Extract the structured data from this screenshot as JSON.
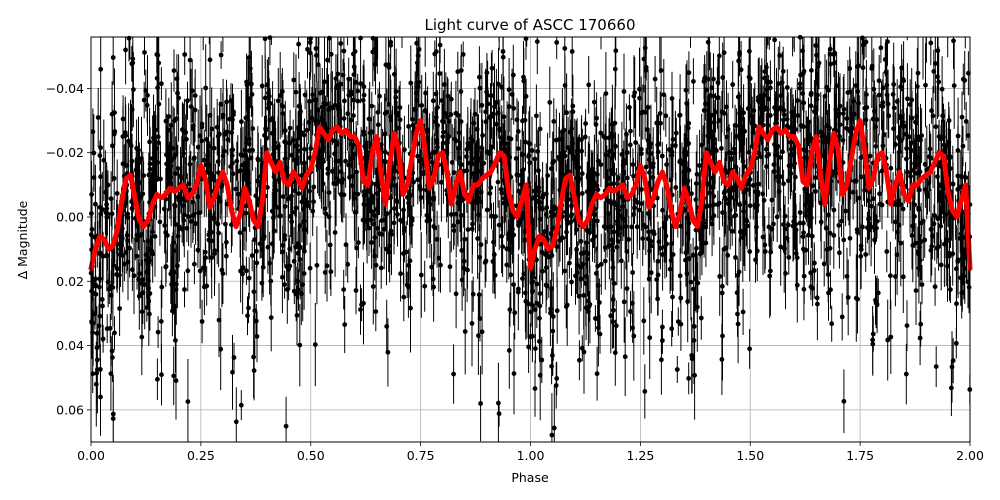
{
  "chart_data": {
    "type": "scatter",
    "title": "Light curve of ASCC 170660",
    "xlabel": "Phase",
    "ylabel": "Δ Magnitude",
    "xlim": [
      0.0,
      2.0
    ],
    "ylim": [
      0.07,
      -0.056
    ],
    "y_inverted": true,
    "grid": true,
    "x_ticks": [
      0.0,
      0.25,
      0.5,
      0.75,
      1.0,
      1.25,
      1.5,
      1.75,
      2.0
    ],
    "x_tick_labels": [
      "0.00",
      "0.25",
      "0.50",
      "0.75",
      "1.00",
      "1.25",
      "1.50",
      "1.75",
      "2.00"
    ],
    "y_ticks": [
      -0.04,
      -0.02,
      0.0,
      0.02,
      0.04,
      0.06
    ],
    "y_tick_labels": [
      "−0.04",
      "−0.02",
      "0.00",
      "0.02",
      "0.04",
      "0.06"
    ],
    "series": [
      {
        "name": "observations",
        "style": "black points with error bars",
        "color": "#000000",
        "description": "dense photometric measurements scattered roughly between +0.07 and −0.056 mag across the full phase range, repeated for phase 0–1 and 1–2"
      },
      {
        "name": "smoothed model",
        "style": "thick red line",
        "color": "#ff0000",
        "x": [
          0.0,
          0.01,
          0.02,
          0.03,
          0.04,
          0.05,
          0.06,
          0.07,
          0.08,
          0.09,
          0.1,
          0.11,
          0.12,
          0.13,
          0.14,
          0.15,
          0.16,
          0.17,
          0.18,
          0.19,
          0.2,
          0.21,
          0.22,
          0.23,
          0.24,
          0.25,
          0.26,
          0.27,
          0.28,
          0.29,
          0.3,
          0.31,
          0.32,
          0.33,
          0.34,
          0.35,
          0.36,
          0.37,
          0.38,
          0.39,
          0.4,
          0.41,
          0.42,
          0.43,
          0.44,
          0.45,
          0.46,
          0.47,
          0.48,
          0.49,
          0.5,
          0.51,
          0.52,
          0.53,
          0.54,
          0.55,
          0.56,
          0.57,
          0.58,
          0.59,
          0.6,
          0.61,
          0.62,
          0.63,
          0.64,
          0.65,
          0.66,
          0.67,
          0.68,
          0.69,
          0.7,
          0.71,
          0.72,
          0.73,
          0.74,
          0.75,
          0.76,
          0.77,
          0.78,
          0.79,
          0.8,
          0.81,
          0.82,
          0.83,
          0.84,
          0.85,
          0.86,
          0.87,
          0.88,
          0.89,
          0.9,
          0.91,
          0.92,
          0.93,
          0.94,
          0.95,
          0.96,
          0.97,
          0.98,
          0.99,
          1.0
        ],
        "y": [
          0.016,
          0.01,
          0.006,
          0.007,
          0.01,
          0.009,
          0.004,
          -0.005,
          -0.012,
          -0.013,
          -0.006,
          0.001,
          0.003,
          0.001,
          -0.004,
          -0.007,
          -0.006,
          -0.007,
          -0.009,
          -0.008,
          -0.009,
          -0.01,
          -0.006,
          -0.007,
          -0.01,
          -0.016,
          -0.012,
          -0.003,
          -0.006,
          -0.011,
          -0.014,
          -0.01,
          -0.002,
          0.003,
          -0.001,
          -0.009,
          -0.005,
          0.001,
          0.003,
          -0.005,
          -0.02,
          -0.017,
          -0.014,
          -0.017,
          -0.011,
          -0.01,
          -0.014,
          -0.012,
          -0.009,
          -0.013,
          -0.015,
          -0.02,
          -0.028,
          -0.026,
          -0.024,
          -0.027,
          -0.028,
          -0.026,
          -0.027,
          -0.025,
          -0.025,
          -0.022,
          -0.011,
          -0.01,
          -0.02,
          -0.025,
          -0.013,
          -0.004,
          -0.017,
          -0.026,
          -0.021,
          -0.007,
          -0.01,
          -0.018,
          -0.026,
          -0.03,
          -0.021,
          -0.009,
          -0.012,
          -0.019,
          -0.02,
          -0.014,
          -0.004,
          -0.01,
          -0.014,
          -0.007,
          -0.005,
          -0.01,
          -0.01,
          -0.012,
          -0.013,
          -0.014,
          -0.017,
          -0.02,
          -0.019,
          -0.008,
          -0.002,
          0.0,
          -0.005,
          -0.01,
          0.016
        ]
      }
    ]
  }
}
